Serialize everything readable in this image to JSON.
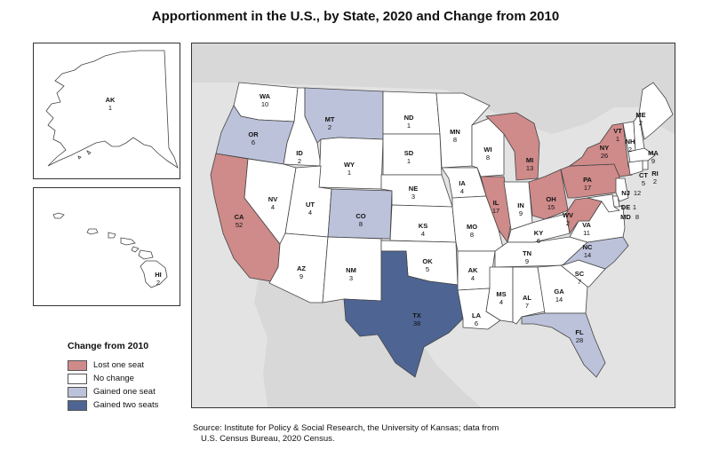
{
  "title": "Apportionment in the U.S., by State, 2020 and Change from 2010",
  "colors": {
    "lost_one": "#cf8a8a",
    "no_change": "#ffffff",
    "gained_one": "#bcc2da",
    "gained_two": "#4e6593",
    "outside": "#e3e3e3"
  },
  "legend": {
    "title": "Change from 2010",
    "items": [
      {
        "label": "Lost one seat",
        "category": "lost_one"
      },
      {
        "label": "No change",
        "category": "no_change"
      },
      {
        "label": "Gained one seat",
        "category": "gained_one"
      },
      {
        "label": "Gained two seats",
        "category": "gained_two"
      }
    ]
  },
  "states": [
    {
      "abbr": "AK",
      "seats": "1",
      "category": "no_change"
    },
    {
      "abbr": "HI",
      "seats": "2",
      "category": "no_change"
    },
    {
      "abbr": "WA",
      "seats": "10",
      "category": "no_change"
    },
    {
      "abbr": "OR",
      "seats": "6",
      "category": "gained_one"
    },
    {
      "abbr": "CA",
      "seats": "52",
      "category": "lost_one"
    },
    {
      "abbr": "ID",
      "seats": "2",
      "category": "no_change"
    },
    {
      "abbr": "NV",
      "seats": "4",
      "category": "no_change"
    },
    {
      "abbr": "MT",
      "seats": "2",
      "category": "gained_one"
    },
    {
      "abbr": "WY",
      "seats": "1",
      "category": "no_change"
    },
    {
      "abbr": "UT",
      "seats": "4",
      "category": "no_change"
    },
    {
      "abbr": "CO",
      "seats": "8",
      "category": "gained_one"
    },
    {
      "abbr": "AZ",
      "seats": "9",
      "category": "no_change"
    },
    {
      "abbr": "NM",
      "seats": "3",
      "category": "no_change"
    },
    {
      "abbr": "ND",
      "seats": "1",
      "category": "no_change"
    },
    {
      "abbr": "SD",
      "seats": "1",
      "category": "no_change"
    },
    {
      "abbr": "NE",
      "seats": "3",
      "category": "no_change"
    },
    {
      "abbr": "KS",
      "seats": "4",
      "category": "no_change"
    },
    {
      "abbr": "OK",
      "seats": "5",
      "category": "no_change"
    },
    {
      "abbr": "TX",
      "seats": "38",
      "category": "gained_two"
    },
    {
      "abbr": "MN",
      "seats": "8",
      "category": "no_change"
    },
    {
      "abbr": "IA",
      "seats": "4",
      "category": "no_change"
    },
    {
      "abbr": "MO",
      "seats": "8",
      "category": "no_change"
    },
    {
      "abbr": "AK",
      "seats": "4",
      "category": "no_change"
    },
    {
      "abbr": "LA",
      "seats": "6",
      "category": "no_change"
    },
    {
      "abbr": "WI",
      "seats": "8",
      "category": "no_change"
    },
    {
      "abbr": "IL",
      "seats": "17",
      "category": "lost_one"
    },
    {
      "abbr": "MI",
      "seats": "13",
      "category": "lost_one"
    },
    {
      "abbr": "IN",
      "seats": "9",
      "category": "no_change"
    },
    {
      "abbr": "OH",
      "seats": "15",
      "category": "lost_one"
    },
    {
      "abbr": "KY",
      "seats": "6",
      "category": "no_change"
    },
    {
      "abbr": "TN",
      "seats": "9",
      "category": "no_change"
    },
    {
      "abbr": "MS",
      "seats": "4",
      "category": "no_change"
    },
    {
      "abbr": "AL",
      "seats": "7",
      "category": "no_change"
    },
    {
      "abbr": "GA",
      "seats": "14",
      "category": "no_change"
    },
    {
      "abbr": "FL",
      "seats": "28",
      "category": "gained_one"
    },
    {
      "abbr": "SC",
      "seats": "7",
      "category": "no_change"
    },
    {
      "abbr": "NC",
      "seats": "14",
      "category": "gained_one"
    },
    {
      "abbr": "VA",
      "seats": "11",
      "category": "no_change"
    },
    {
      "abbr": "WV",
      "seats": "2",
      "category": "lost_one"
    },
    {
      "abbr": "PA",
      "seats": "17",
      "category": "lost_one"
    },
    {
      "abbr": "NY",
      "seats": "26",
      "category": "lost_one"
    },
    {
      "abbr": "VT",
      "seats": "1",
      "category": "no_change"
    },
    {
      "abbr": "NH",
      "seats": "2",
      "category": "no_change"
    },
    {
      "abbr": "ME",
      "seats": "2",
      "category": "no_change"
    },
    {
      "abbr": "MA",
      "seats": "9",
      "category": "no_change"
    },
    {
      "abbr": "RI",
      "seats": "2",
      "category": "no_change"
    },
    {
      "abbr": "CT",
      "seats": "5",
      "category": "no_change"
    },
    {
      "abbr": "NJ",
      "seats": "12",
      "category": "no_change"
    },
    {
      "abbr": "DE",
      "seats": "1",
      "category": "no_change"
    },
    {
      "abbr": "MD",
      "seats": "8",
      "category": "no_change"
    }
  ],
  "source": {
    "line1": "Source: Institute for Policy & Social Research, the University of Kansas; data from",
    "line2": "U.S. Census Bureau, 2020 Census."
  }
}
